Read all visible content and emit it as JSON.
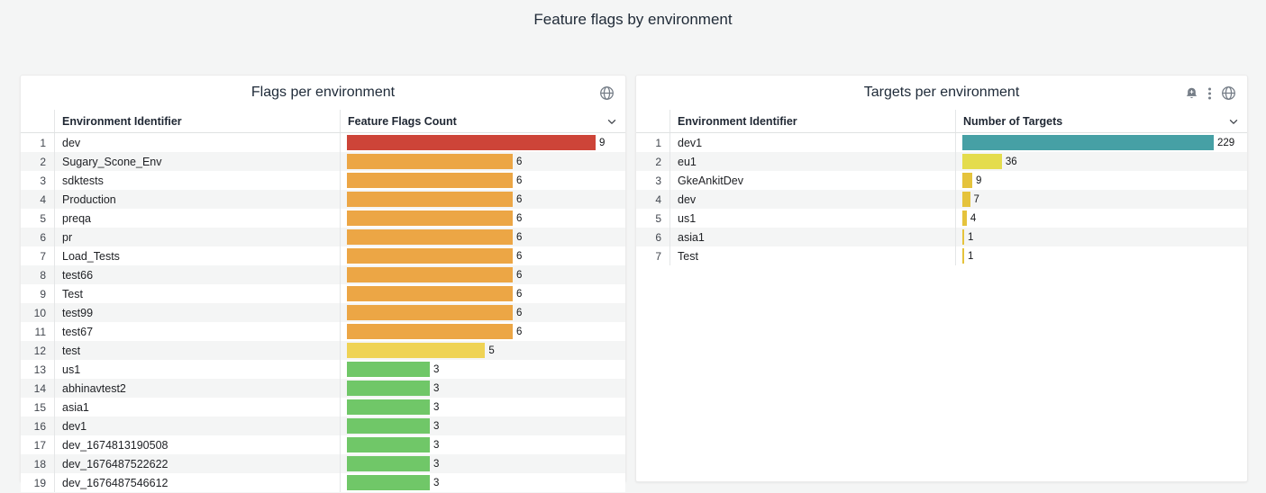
{
  "page": {
    "title": "Feature flags by environment",
    "background": "#f4f5f5",
    "panel_background": "#ffffff"
  },
  "colors": {
    "red": "#cd4438",
    "orange": "#eca645",
    "yellow": "#efd355",
    "green": "#70c768",
    "teal": "#46a0a5",
    "lime_yellow": "#e4dc4d",
    "amber": "#e5c33c"
  },
  "panels": [
    {
      "title": "Flags per environment",
      "header_icons": [
        "globe-icon"
      ],
      "columns": {
        "identifier": "Environment Identifier",
        "value": "Feature Flags Count"
      },
      "chart_type": "bar-gauge-table",
      "value_max": 9,
      "rows": [
        {
          "n": 1,
          "name": "dev",
          "value": 9,
          "color": "#cd4438"
        },
        {
          "n": 2,
          "name": "Sugary_Scone_Env",
          "value": 6,
          "color": "#eca645"
        },
        {
          "n": 3,
          "name": "sdktests",
          "value": 6,
          "color": "#eca645"
        },
        {
          "n": 4,
          "name": "Production",
          "value": 6,
          "color": "#eca645"
        },
        {
          "n": 5,
          "name": "preqa",
          "value": 6,
          "color": "#eca645"
        },
        {
          "n": 6,
          "name": "pr",
          "value": 6,
          "color": "#eca645"
        },
        {
          "n": 7,
          "name": "Load_Tests",
          "value": 6,
          "color": "#eca645"
        },
        {
          "n": 8,
          "name": "test66",
          "value": 6,
          "color": "#eca645"
        },
        {
          "n": 9,
          "name": "Test",
          "value": 6,
          "color": "#eca645"
        },
        {
          "n": 10,
          "name": "test99",
          "value": 6,
          "color": "#eca645"
        },
        {
          "n": 11,
          "name": "test67",
          "value": 6,
          "color": "#eca645"
        },
        {
          "n": 12,
          "name": "test",
          "value": 5,
          "color": "#efd355"
        },
        {
          "n": 13,
          "name": "us1",
          "value": 3,
          "color": "#70c768"
        },
        {
          "n": 14,
          "name": "abhinavtest2",
          "value": 3,
          "color": "#70c768"
        },
        {
          "n": 15,
          "name": "asia1",
          "value": 3,
          "color": "#70c768"
        },
        {
          "n": 16,
          "name": "dev1",
          "value": 3,
          "color": "#70c768"
        },
        {
          "n": 17,
          "name": "dev_1674813190508",
          "value": 3,
          "color": "#70c768"
        },
        {
          "n": 18,
          "name": "dev_1676487522622",
          "value": 3,
          "color": "#70c768"
        },
        {
          "n": 19,
          "name": "dev_1676487546612",
          "value": 3,
          "color": "#70c768"
        }
      ]
    },
    {
      "title": "Targets per environment",
      "header_icons": [
        "bell-plus-icon",
        "kebab-menu-icon",
        "globe-icon"
      ],
      "columns": {
        "identifier": "Environment Identifier",
        "value": "Number of Targets"
      },
      "chart_type": "bar-gauge-table",
      "value_max": 229,
      "rows": [
        {
          "n": 1,
          "name": "dev1",
          "value": 229,
          "color": "#46a0a5"
        },
        {
          "n": 2,
          "name": "eu1",
          "value": 36,
          "color": "#e4dc4d"
        },
        {
          "n": 3,
          "name": "GkeAnkitDev",
          "value": 9,
          "color": "#e5c33c"
        },
        {
          "n": 4,
          "name": "dev",
          "value": 7,
          "color": "#e5c33c"
        },
        {
          "n": 5,
          "name": "us1",
          "value": 4,
          "color": "#e5c33c"
        },
        {
          "n": 6,
          "name": "asia1",
          "value": 1,
          "color": "#e5c33c"
        },
        {
          "n": 7,
          "name": "Test",
          "value": 1,
          "color": "#e5c33c"
        }
      ]
    }
  ]
}
